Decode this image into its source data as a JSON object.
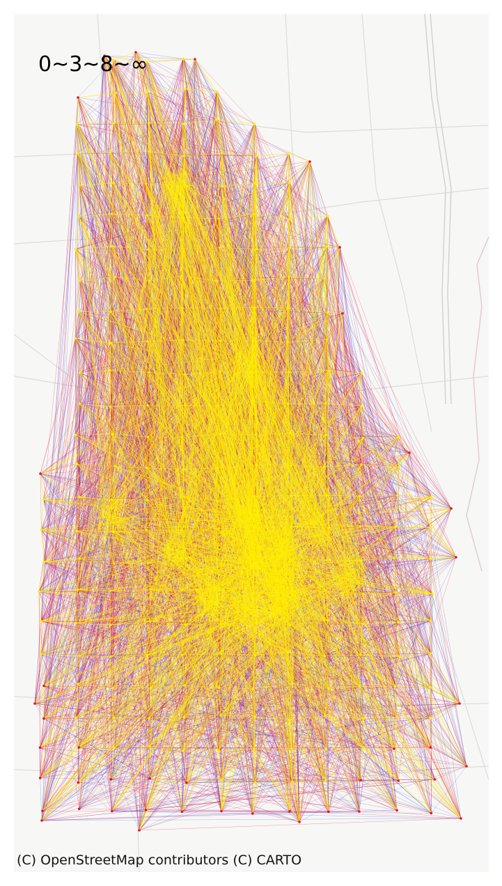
{
  "map": {
    "legend_label": "0~3~8~∞",
    "attribution": "(C) OpenStreetMap contributors (C) CARTO",
    "basemap_style": "light-grey",
    "colors": {
      "basemap": "#f7f7f5",
      "roads": "#dcdcdc",
      "major_road": "#d0d0d0",
      "boundary": "#e3c9cc",
      "range_low": "#ffee00",
      "range_mid": "#e0103a",
      "range_high": "#2b2bd6"
    },
    "color_scale": [
      "0~3",
      "3~8",
      "8~∞"
    ]
  }
}
